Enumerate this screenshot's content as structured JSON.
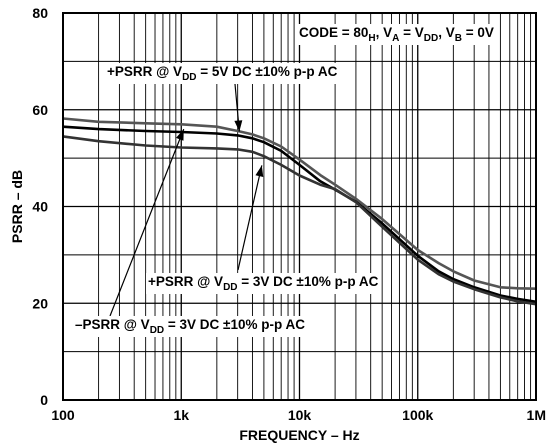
{
  "chart_data": {
    "type": "line",
    "title": "",
    "xlabel": "FREQUENCY – Hz",
    "ylabel": "PSRR – dB",
    "x_scale": "log",
    "xlim": [
      100,
      1000000
    ],
    "ylim": [
      0,
      80
    ],
    "grid": true,
    "x_tick_labels": [
      {
        "value": 100,
        "label": "100"
      },
      {
        "value": 1000,
        "label": "1k"
      },
      {
        "value": 10000,
        "label": "10k"
      },
      {
        "value": 100000,
        "label": "100k"
      },
      {
        "value": 1000000,
        "label": "1M"
      }
    ],
    "y_tick_labels": [
      {
        "value": 0,
        "label": "0"
      },
      {
        "value": 20,
        "label": "20"
      },
      {
        "value": 40,
        "label": "40"
      },
      {
        "value": 60,
        "label": "60"
      },
      {
        "value": 80,
        "label": "80"
      }
    ],
    "condition": {
      "pre": "CODE = 80",
      "sub1": "H",
      "mid1": ", V",
      "sub2": "A",
      "mid2": " = V",
      "sub3": "DD",
      "mid3": ", V",
      "sub4": "B",
      "end": " = 0V"
    },
    "annotations": [
      {
        "id": "psrr-5v",
        "pre": "+PSRR @ V",
        "sub": "DD",
        "post": " = 5V DC ±10% p-p AC",
        "target_series": 0,
        "arrow_x": 3100,
        "arrow_y": 55.5
      },
      {
        "id": "pos-psrr-3v",
        "pre": "+PSRR @ V",
        "sub": "DD",
        "post": " = 3V DC ±10% p-p AC",
        "target_series": 1,
        "arrow_x": 4800,
        "arrow_y": 48.5
      },
      {
        "id": "neg-psrr-3v",
        "pre": "–PSRR @ V",
        "sub": "DD",
        "post": " = 3V DC ±10% p-p AC",
        "target_series": 2,
        "arrow_x": 1050,
        "arrow_y": 56
      }
    ],
    "series": [
      {
        "color": "#555555",
        "x": [
          100,
          200,
          500,
          1000,
          2000,
          3000,
          4000,
          5000,
          7000,
          10000,
          15000,
          20000,
          30000,
          50000,
          100000,
          150000,
          200000,
          300000,
          500000,
          700000,
          1000000
        ],
        "y": [
          58.2,
          57.5,
          57.2,
          57,
          56.5,
          55.6,
          54.9,
          54.1,
          52.4,
          49.7,
          46.5,
          44.5,
          41.6,
          37.4,
          31,
          28.3,
          26.6,
          24.7,
          23.3,
          23.1,
          23
        ]
      },
      {
        "color": "#000000",
        "x": [
          100,
          200,
          500,
          1000,
          2000,
          3000,
          4000,
          5000,
          7000,
          10000,
          15000,
          20000,
          30000,
          50000,
          100000,
          150000,
          200000,
          300000,
          500000,
          700000,
          1000000
        ],
        "y": [
          56.5,
          56,
          55.6,
          55.4,
          55.1,
          54.7,
          54.1,
          53.3,
          51.5,
          48.6,
          45.2,
          43.5,
          41,
          36.5,
          29.8,
          26.6,
          25,
          23.3,
          21.6,
          20.9,
          20.3
        ]
      },
      {
        "color": "#333333",
        "x": [
          100,
          200,
          500,
          1000,
          2000,
          3000,
          4000,
          5000,
          7000,
          10000,
          15000,
          20000,
          30000,
          50000,
          100000,
          150000,
          200000,
          300000,
          500000,
          700000,
          1000000
        ],
        "y": [
          54.5,
          53.5,
          52.6,
          52.2,
          52,
          51.8,
          51.3,
          50.4,
          48.6,
          46.4,
          44.5,
          43.6,
          40.9,
          35.8,
          29,
          26,
          24.5,
          22.9,
          21.2,
          20.4,
          19.8
        ]
      }
    ]
  }
}
